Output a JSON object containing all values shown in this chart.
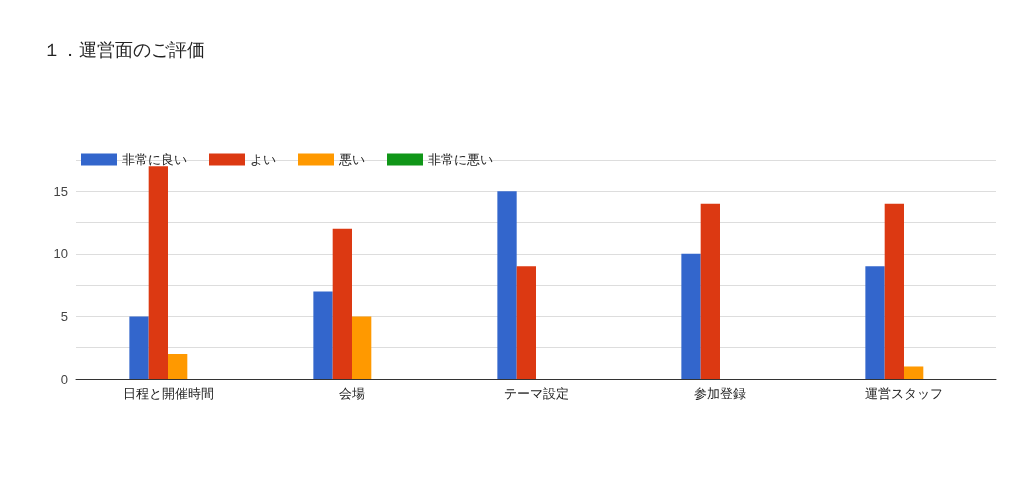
{
  "chart_data": {
    "type": "bar",
    "title": "１．運営面のご評価",
    "categories": [
      "日程と開催時間",
      "会場",
      "テーマ設定",
      "参加登録",
      "運営スタッフ"
    ],
    "series": [
      {
        "name": "非常に良い",
        "color": "#3366cc",
        "values": [
          5,
          7,
          15,
          10,
          9
        ]
      },
      {
        "name": "よい",
        "color": "#dc3912",
        "values": [
          17,
          12,
          9,
          14,
          14
        ]
      },
      {
        "name": "悪い",
        "color": "#ff9900",
        "values": [
          2,
          5,
          0,
          0,
          1
        ]
      },
      {
        "name": "非常に悪い",
        "color": "#109618",
        "values": [
          0,
          0,
          0,
          0,
          0
        ]
      }
    ],
    "ylim": [
      0,
      17.5
    ],
    "yticks": [
      0,
      {
        "value": 2.5,
        "label": null
      },
      5,
      {
        "value": 7.5,
        "label": null
      },
      10,
      {
        "value": 12.5,
        "label": null
      },
      15,
      {
        "value": 17.5,
        "label": null
      }
    ],
    "grid": "y",
    "legend": "top left"
  }
}
